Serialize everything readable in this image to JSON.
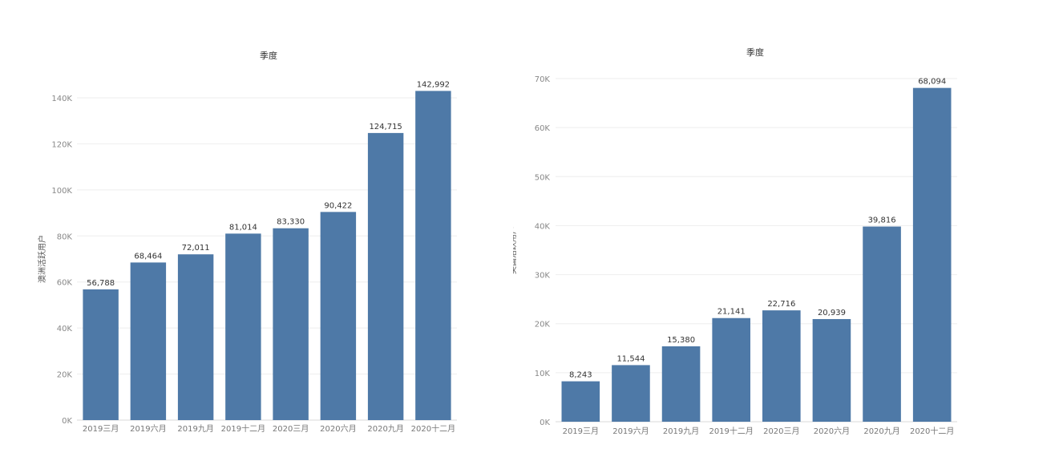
{
  "chart_data": [
    {
      "type": "bar",
      "title": "季度",
      "xlabel": "",
      "ylabel": "澳洲活跃用户",
      "categories": [
        "2019三月",
        "2019六月",
        "2019九月",
        "2019十二月",
        "2020三月",
        "2020六月",
        "2020九月",
        "2020十二月"
      ],
      "values": [
        56788,
        68464,
        72011,
        81014,
        83330,
        90422,
        124715,
        142992
      ],
      "data_labels": [
        "56,788",
        "68,464",
        "72,011",
        "81,014",
        "83,330",
        "90,422",
        "124,715",
        "142,992"
      ],
      "ylim": [
        0,
        140000
      ],
      "yticks": [
        0,
        20000,
        40000,
        60000,
        80000,
        100000,
        120000,
        140000
      ],
      "ytick_labels": [
        "0K",
        "20K",
        "40K",
        "60K",
        "80K",
        "100K",
        "120K",
        "140K"
      ],
      "grid": true,
      "bar_color": "#4e79a7"
    },
    {
      "type": "bar",
      "title": "季度",
      "xlabel": "",
      "ylabel": "美国活跃用户",
      "categories": [
        "2019三月",
        "2019六月",
        "2019九月",
        "2019十二月",
        "2020三月",
        "2020六月",
        "2020九月",
        "2020十二月"
      ],
      "values": [
        8243,
        11544,
        15380,
        21141,
        22716,
        20939,
        39816,
        68094
      ],
      "data_labels": [
        "8,243",
        "11,544",
        "15,380",
        "21,141",
        "22,716",
        "20,939",
        "39,816",
        "68,094"
      ],
      "ylim": [
        0,
        70000
      ],
      "yticks": [
        0,
        10000,
        20000,
        30000,
        40000,
        50000,
        60000,
        70000
      ],
      "ytick_labels": [
        "0K",
        "10K",
        "20K",
        "30K",
        "40K",
        "50K",
        "60K",
        "70K"
      ],
      "grid": true,
      "bar_color": "#4e79a7"
    }
  ]
}
